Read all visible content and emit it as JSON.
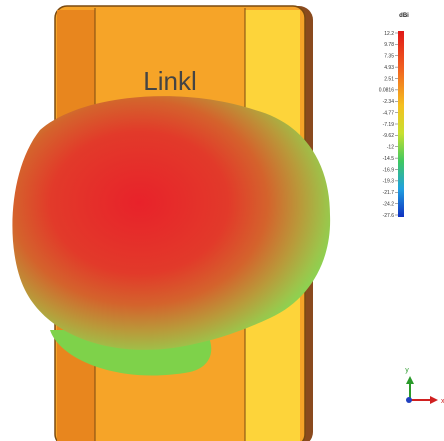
{
  "phone": {
    "brand": "Linkl"
  },
  "legend": {
    "unit": "dBi",
    "labels": [
      "12.2",
      "9.78",
      "7.35",
      "4.93",
      "2.51",
      "0.0816",
      "-2.34",
      "-4.77",
      "-7.19",
      "-9.62",
      "-12",
      "-14.5",
      "-16.9",
      "-19.3",
      "-21.7",
      "-24.2",
      "-27.6"
    ]
  },
  "axes": {
    "y": "y",
    "x": "x"
  }
}
